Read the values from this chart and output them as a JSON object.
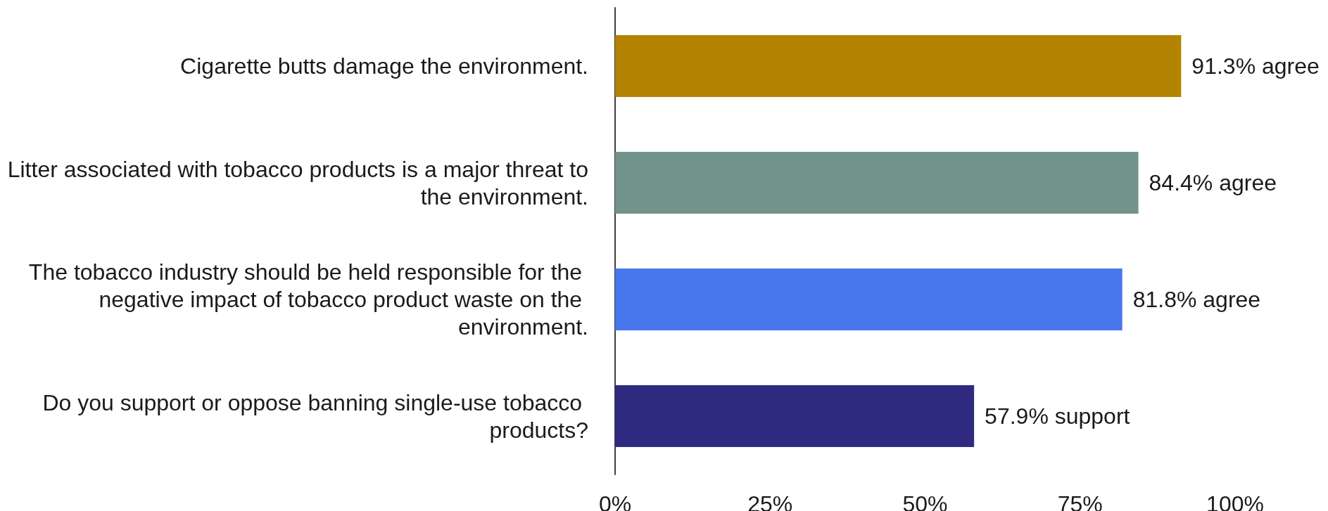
{
  "chart_data": {
    "type": "bar",
    "orientation": "horizontal",
    "categories": [
      "Cigarette butts damage the environment.",
      "Litter associated with tobacco products is a major threat to the environment.",
      "The tobacco industry should be held responsible for the negative impact of tobacco product waste on the environment.",
      "Do you support or oppose banning single-use tobacco products?"
    ],
    "values": [
      91.3,
      84.4,
      81.8,
      57.9
    ],
    "colors": [
      "#b38300",
      "#72938c",
      "#4877ed",
      "#2e2a80"
    ],
    "value_labels": [
      "91.3% agree",
      "84.4% agree",
      "81.8% agree",
      "57.9% support"
    ],
    "xlim": [
      0,
      100
    ],
    "xticks": [
      {
        "value": 0,
        "label": "0%"
      },
      {
        "value": 25,
        "label": "25%"
      },
      {
        "value": 50,
        "label": "50%"
      },
      {
        "value": 75,
        "label": "75%"
      },
      {
        "value": 100,
        "label": "100%"
      }
    ]
  }
}
